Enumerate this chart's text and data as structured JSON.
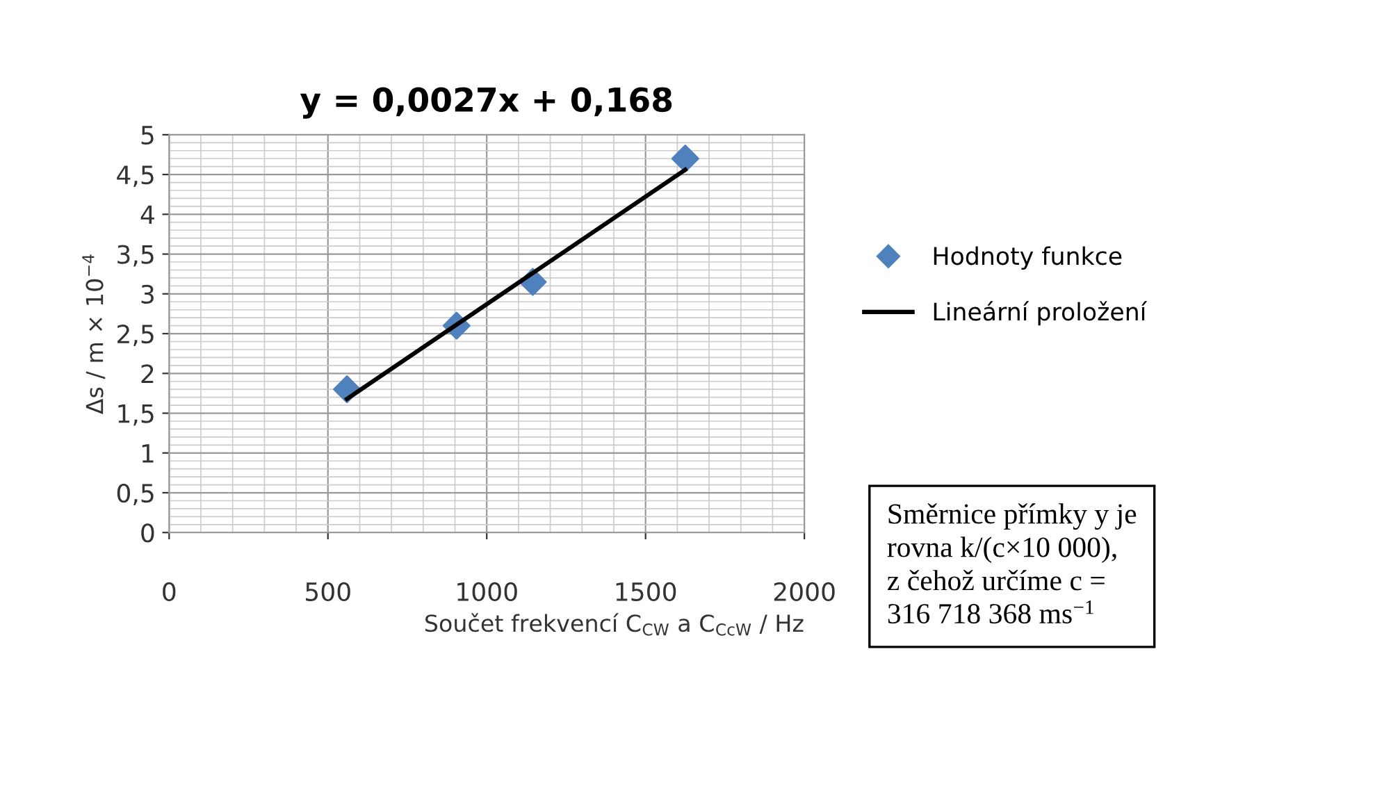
{
  "chart_data": {
    "type": "scatter",
    "title": "y = 0,0027x + 0,168",
    "xlabel": "Součet frekvencí C$_{CW}$ a C$_{CcW}$ / Hz",
    "ylabel": "Δs / m × 10$^{−4}$",
    "series": [
      {
        "name": "Hodnoty funkce",
        "color": "#4f81bd",
        "marker": "diamond",
        "x": [
          560,
          905,
          1145,
          1625
        ],
        "values": [
          1.8,
          2.6,
          3.15,
          4.7
        ]
      },
      {
        "name": "Lineární proložení",
        "type": "line",
        "color": "#000000",
        "marker": "none",
        "line_style": "solid",
        "x": [
          560,
          1625
        ],
        "values": [
          1.68,
          4.56
        ]
      }
    ],
    "xlim": [
      0,
      2000
    ],
    "xticks": [
      0,
      500,
      1000,
      1500,
      2000
    ],
    "ylim": [
      0,
      5
    ],
    "yticks": [
      0,
      {
        "value": 0.5,
        "label": "0,5"
      },
      1,
      {
        "value": 1.5,
        "label": "1,5"
      },
      2,
      {
        "value": 2.5,
        "label": "2,5"
      },
      3,
      {
        "value": 3.5,
        "label": "3,5"
      },
      4,
      {
        "value": 4.5,
        "label": "4,5"
      },
      5
    ],
    "grid": true,
    "legend": "right",
    "annotations": [
      "Směrnice přímky y je\nrovna k/(c×10 000),\nz čehož určíme c =\n316 718 368 ms$^{−1}$"
    ]
  }
}
